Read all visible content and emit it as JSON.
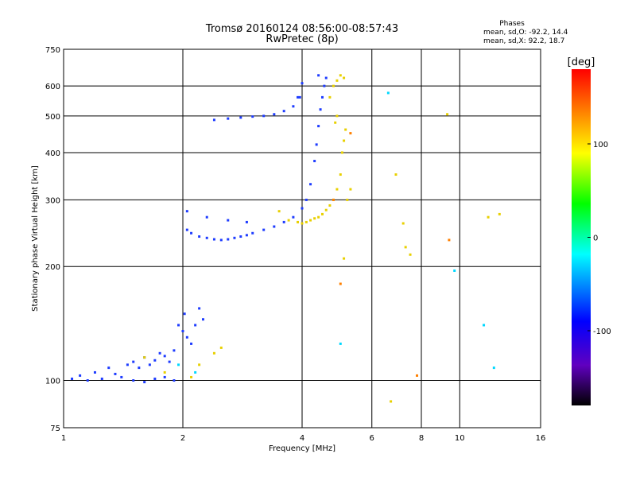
{
  "chart_data": {
    "type": "scatter",
    "title": "Tromsø 20160124 08:56:00-08:57:43",
    "subtitle": "RwPretec (8p)",
    "xlabel": "Frequency [MHz]",
    "ylabel": "Stationary phase Virtual Height [km]",
    "x_scale": "log",
    "y_scale": "log",
    "xlim": [
      1,
      16
    ],
    "ylim": [
      75,
      750
    ],
    "x_ticks": [
      1,
      2,
      4,
      6,
      8,
      10,
      16
    ],
    "y_ticks": [
      75,
      100,
      200,
      300,
      400,
      500,
      600,
      750
    ],
    "grid": true,
    "stats": {
      "heading": "Phases",
      "o_line": "mean, sd,O: -92.2, 14.4",
      "x_line": "mean, sd,X:  92.2, 18.7"
    },
    "colorbar": {
      "label": "[deg]",
      "range": [
        -180,
        180
      ],
      "ticks": [
        100,
        0,
        -100
      ],
      "colors": [
        "#ff0000",
        "#ffff00",
        "#00ff00",
        "#00ffff",
        "#0000ff",
        "#8000ff",
        "#000000"
      ]
    },
    "series": [
      {
        "mode": "O",
        "color": "#1e3cff",
        "points": [
          [
            1.05,
            101
          ],
          [
            1.1,
            103
          ],
          [
            1.15,
            100
          ],
          [
            1.2,
            105
          ],
          [
            1.25,
            101
          ],
          [
            1.3,
            108
          ],
          [
            1.35,
            104
          ],
          [
            1.4,
            102
          ],
          [
            1.45,
            110
          ],
          [
            1.5,
            112
          ],
          [
            1.55,
            108
          ],
          [
            1.6,
            115
          ],
          [
            1.65,
            110
          ],
          [
            1.7,
            113
          ],
          [
            1.75,
            118
          ],
          [
            1.8,
            116
          ],
          [
            1.85,
            112
          ],
          [
            1.9,
            120
          ],
          [
            1.95,
            140
          ],
          [
            2.0,
            135
          ],
          [
            2.02,
            150
          ],
          [
            2.05,
            130
          ],
          [
            2.1,
            125
          ],
          [
            2.15,
            140
          ],
          [
            2.2,
            155
          ],
          [
            2.25,
            145
          ],
          [
            1.5,
            100
          ],
          [
            1.6,
            99
          ],
          [
            1.7,
            101
          ],
          [
            1.8,
            102
          ],
          [
            1.9,
            100
          ],
          [
            2.05,
            280
          ],
          [
            2.05,
            250
          ],
          [
            2.1,
            245
          ],
          [
            2.2,
            240
          ],
          [
            2.3,
            238
          ],
          [
            2.4,
            236
          ],
          [
            2.5,
            235
          ],
          [
            2.6,
            236
          ],
          [
            2.7,
            238
          ],
          [
            2.8,
            240
          ],
          [
            2.9,
            242
          ],
          [
            3.0,
            245
          ],
          [
            3.2,
            250
          ],
          [
            3.4,
            255
          ],
          [
            3.6,
            262
          ],
          [
            3.8,
            270
          ],
          [
            4.0,
            285
          ],
          [
            4.1,
            300
          ],
          [
            4.2,
            330
          ],
          [
            4.3,
            380
          ],
          [
            4.35,
            420
          ],
          [
            4.4,
            470
          ],
          [
            4.45,
            520
          ],
          [
            4.5,
            560
          ],
          [
            4.55,
            600
          ],
          [
            4.6,
            630
          ],
          [
            4.4,
            640
          ],
          [
            4.0,
            610
          ],
          [
            3.95,
            560
          ],
          [
            2.3,
            270
          ],
          [
            2.6,
            265
          ],
          [
            2.9,
            262
          ],
          [
            2.4,
            488
          ],
          [
            2.6,
            492
          ],
          [
            2.8,
            495
          ],
          [
            3.0,
            498
          ],
          [
            3.2,
            500
          ],
          [
            3.4,
            505
          ],
          [
            3.6,
            515
          ],
          [
            3.8,
            530
          ],
          [
            3.9,
            560
          ]
        ]
      },
      {
        "mode": "X",
        "color": "#e8d000",
        "points": [
          [
            3.5,
            280
          ],
          [
            3.7,
            265
          ],
          [
            3.9,
            262
          ],
          [
            4.0,
            260
          ],
          [
            4.1,
            262
          ],
          [
            4.2,
            265
          ],
          [
            4.3,
            268
          ],
          [
            4.4,
            270
          ],
          [
            4.5,
            275
          ],
          [
            4.6,
            282
          ],
          [
            4.7,
            290
          ],
          [
            4.8,
            300
          ],
          [
            4.9,
            320
          ],
          [
            5.0,
            350
          ],
          [
            5.05,
            400
          ],
          [
            5.1,
            430
          ],
          [
            5.15,
            460
          ],
          [
            4.7,
            560
          ],
          [
            4.8,
            600
          ],
          [
            4.9,
            620
          ],
          [
            5.0,
            640
          ],
          [
            5.1,
            630
          ],
          [
            4.9,
            500
          ],
          [
            4.85,
            480
          ],
          [
            2.2,
            110
          ],
          [
            2.4,
            118
          ],
          [
            2.5,
            122
          ],
          [
            1.6,
            115
          ],
          [
            1.8,
            105
          ],
          [
            2.1,
            102
          ],
          [
            5.1,
            210
          ],
          [
            6.9,
            350
          ],
          [
            7.2,
            260
          ],
          [
            7.3,
            225
          ],
          [
            7.5,
            215
          ],
          [
            9.3,
            505
          ],
          [
            11.8,
            270
          ],
          [
            12.6,
            275
          ],
          [
            5.2,
            300
          ],
          [
            5.3,
            320
          ],
          [
            6.7,
            88
          ]
        ]
      },
      {
        "mode": "X-outlier",
        "color": "#ff8000",
        "points": [
          [
            5.0,
            180
          ],
          [
            5.3,
            450
          ],
          [
            4.8,
            300
          ],
          [
            9.4,
            235
          ],
          [
            7.8,
            103
          ]
        ]
      },
      {
        "mode": "other",
        "color": "#00d8ff",
        "points": [
          [
            6.6,
            575
          ],
          [
            11.5,
            140
          ],
          [
            12.2,
            108
          ],
          [
            9.7,
            195
          ],
          [
            5.0,
            125
          ],
          [
            1.95,
            110
          ],
          [
            2.15,
            105
          ]
        ]
      }
    ]
  }
}
